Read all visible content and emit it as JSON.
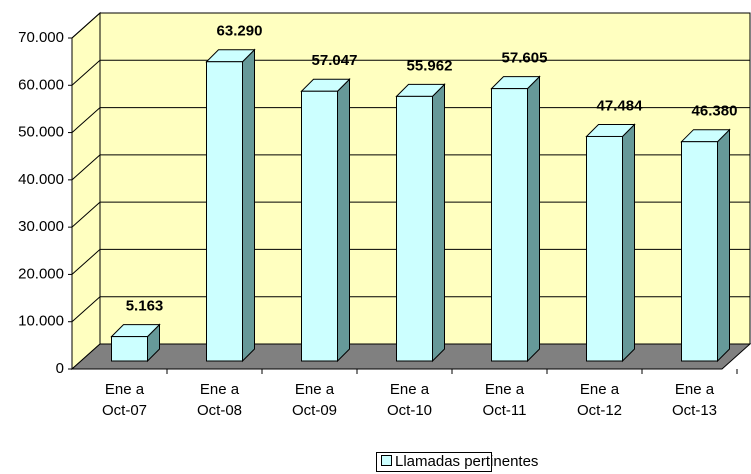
{
  "chart_data": {
    "type": "bar3d",
    "categories": [
      "Ene a Oct-07",
      "Ene a Oct-08",
      "Ene a Oct-09",
      "Ene a Oct-10",
      "Ene a Oct-11",
      "Ene a Oct-12",
      "Ene a Oct-13"
    ],
    "series": [
      {
        "name": "Llamadas pertinentes",
        "color": "#ccffff",
        "values": [
          5163,
          63290,
          57047,
          55962,
          57605,
          47484,
          46380
        ],
        "value_labels": [
          "5.163",
          "63.290",
          "57.047",
          "55.962",
          "57.605",
          "47.484",
          "46.380"
        ]
      }
    ],
    "ylim": [
      0,
      70000
    ],
    "yticks": [
      0,
      {
        "value": 10000,
        "label": "10.000"
      },
      {
        "value": 20000,
        "label": "20.000"
      },
      {
        "value": 30000,
        "label": "30.000"
      },
      {
        "value": 40000,
        "label": "40.000"
      },
      {
        "value": 50000,
        "label": "50.000"
      },
      {
        "value": 60000,
        "label": "60.000"
      },
      {
        "value": 70000,
        "label": "70.000"
      }
    ],
    "grid": true,
    "legend": "bottom"
  }
}
